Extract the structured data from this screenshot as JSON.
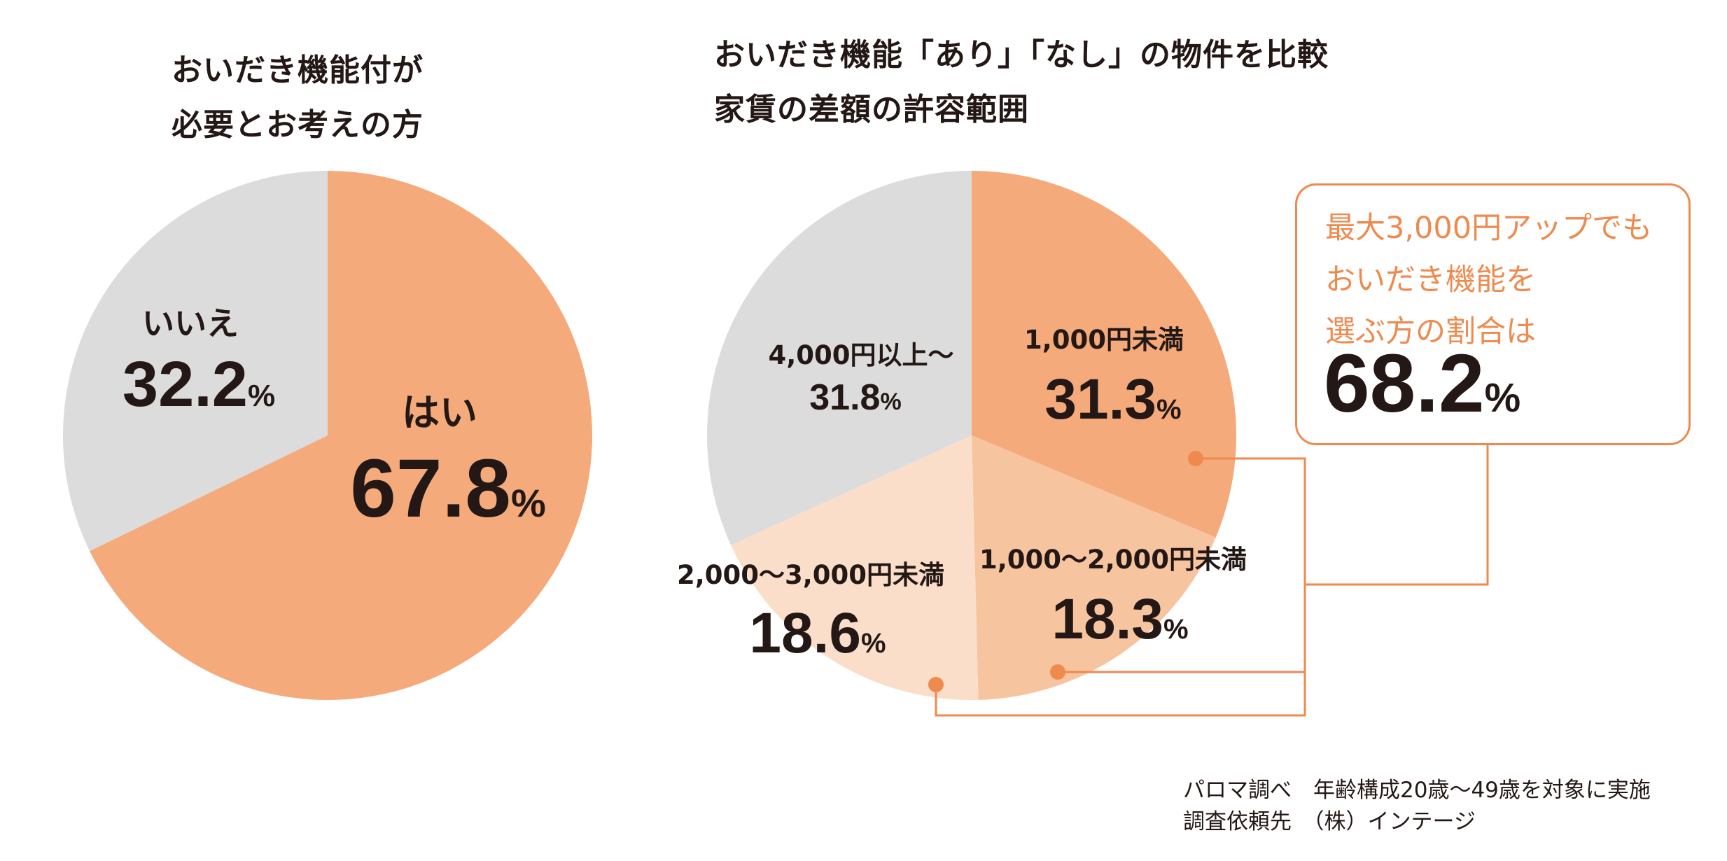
{
  "colors": {
    "orange_dark": "#f4aa7b",
    "orange_mid": "#f7c4a0",
    "orange_light": "#fbdec9",
    "gray": "#dcdcdc",
    "accent": "#ef8a4e",
    "text": "#231815"
  },
  "chart_data": [
    {
      "type": "pie",
      "title": "おいだき機能付が\n必要とお考えの方",
      "slices": [
        {
          "name": "はい",
          "value": 67.8,
          "color": "#f4aa7b"
        },
        {
          "name": "いいえ",
          "value": 32.2,
          "color": "#dcdcdc"
        }
      ],
      "unit": "%"
    },
    {
      "type": "pie",
      "title": "おいだき機能「あり」「なし」の物件を比較\n家賃の差額の許容範囲",
      "slices": [
        {
          "name": "1,000円未満",
          "value": 31.3,
          "color": "#f4aa7b"
        },
        {
          "name": "1,000〜2,000円未満",
          "value": 18.3,
          "color": "#f7c4a0"
        },
        {
          "name": "2,000〜3,000円未満",
          "value": 18.6,
          "color": "#fbdec9"
        },
        {
          "name": "4,000円以上〜",
          "value": 31.8,
          "color": "#dcdcdc"
        }
      ],
      "unit": "%",
      "callout": {
        "lines": [
          "最大3,000円アップでも",
          "おいだき機能を",
          "選ぶ方の割合は"
        ],
        "value": "68.2",
        "unit": "%"
      }
    }
  ],
  "source": {
    "line1": "パロマ調べ　年齢構成20歳〜49歳を対象に実施",
    "line2": "調査依頼先　（株）インテージ"
  }
}
